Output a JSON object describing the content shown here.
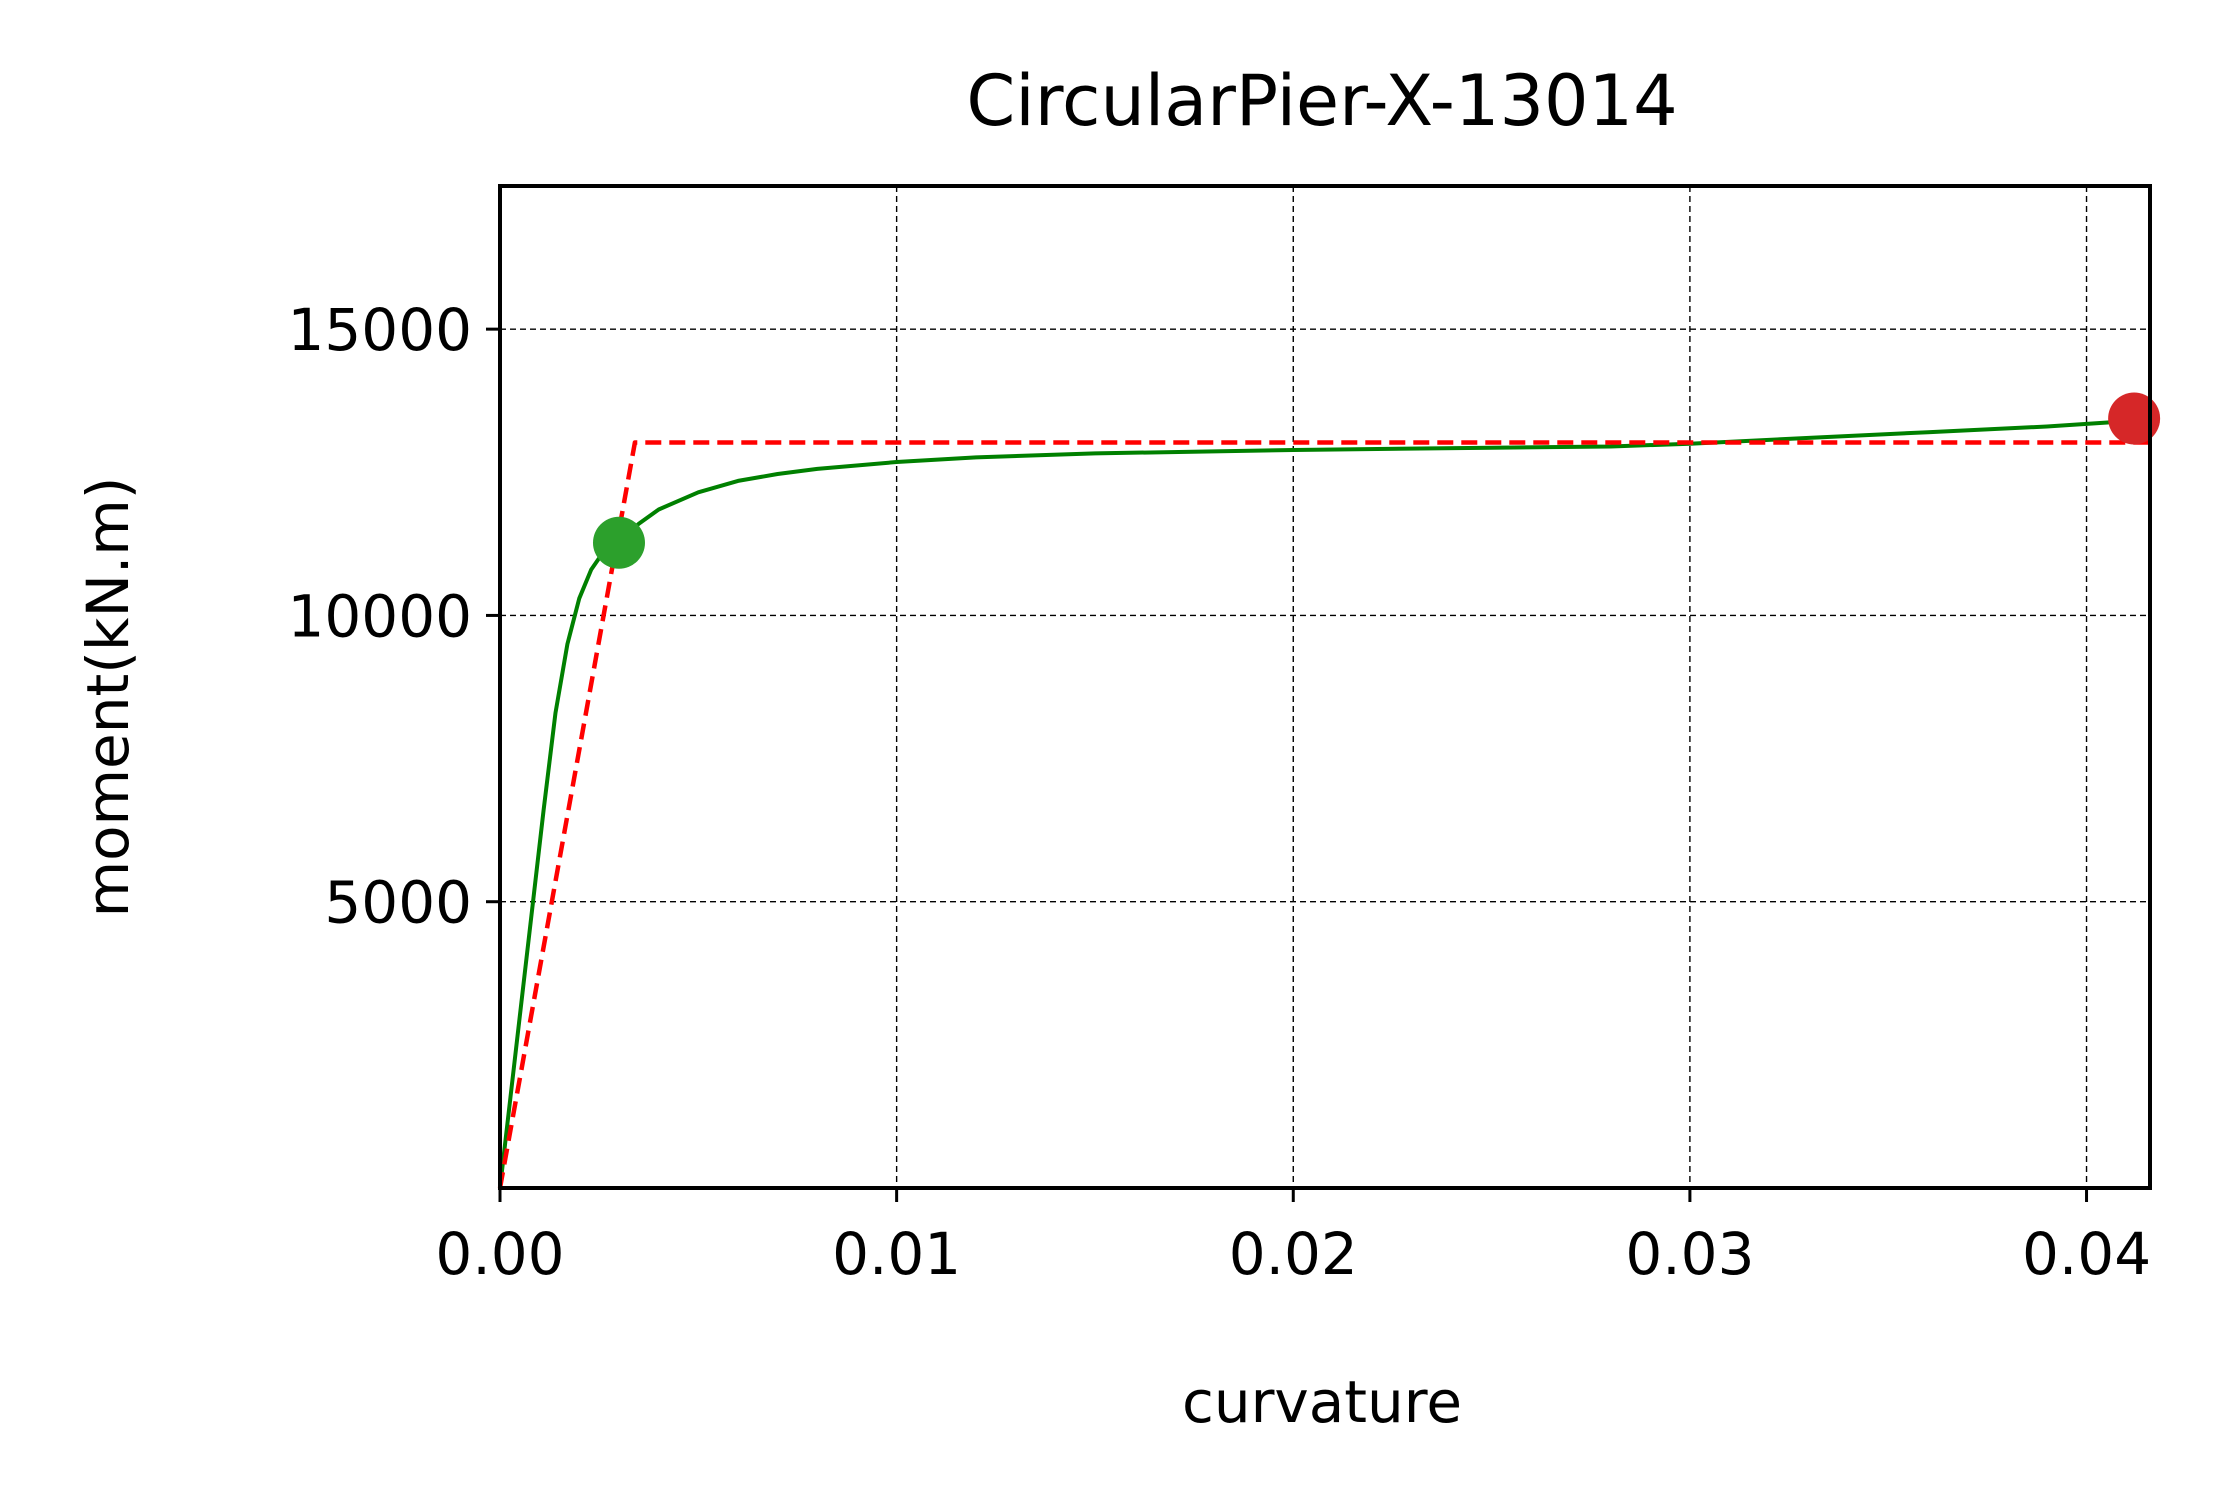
{
  "chart_data": {
    "type": "line",
    "title": "CircularPier-X-13014",
    "xlabel": "curvature",
    "ylabel": "moment(kN.m)",
    "xlim": [
      0.0,
      0.0416
    ],
    "ylim": [
      0,
      17500
    ],
    "x_ticks": [
      0.0,
      0.01,
      0.02,
      0.03,
      0.04
    ],
    "x_tick_labels": [
      "0.00",
      "0.01",
      "0.02",
      "0.03",
      "0.04"
    ],
    "y_ticks": [
      5000,
      10000,
      15000
    ],
    "y_tick_labels": [
      "5000",
      "10000",
      "15000"
    ],
    "grid": true,
    "colors": {
      "moment_curve": "#008000",
      "bilinear": "#ff0000",
      "yield_point": "#2ca02c",
      "ultimate_point": "#d62728"
    },
    "series": [
      {
        "style": "solid",
        "color": "#008000",
        "x": [
          0.0,
          0.0005,
          0.0008,
          0.0011,
          0.0014,
          0.0017,
          0.002,
          0.0023,
          0.0026,
          0.003,
          0.0035,
          0.004,
          0.005,
          0.006,
          0.007,
          0.008,
          0.01,
          0.012,
          0.015,
          0.02,
          0.025,
          0.028,
          0.03,
          0.033,
          0.036,
          0.039,
          0.0412
        ],
        "y": [
          0,
          3000,
          4800,
          6600,
          8300,
          9500,
          10300,
          10800,
          11100,
          11300,
          11600,
          11850,
          12150,
          12350,
          12470,
          12560,
          12680,
          12760,
          12830,
          12890,
          12930,
          12950,
          13000,
          13100,
          13200,
          13300,
          13400
        ]
      },
      {
        "style": "dashed",
        "color": "#ff0000",
        "x": [
          0.0,
          0.0034,
          0.0416
        ],
        "y": [
          0,
          13020,
          13020
        ]
      }
    ],
    "points": [
      {
        "x": 0.003,
        "y": 11270,
        "color": "#2ca02c"
      },
      {
        "x": 0.0412,
        "y": 13440,
        "color": "#d62728"
      }
    ]
  }
}
